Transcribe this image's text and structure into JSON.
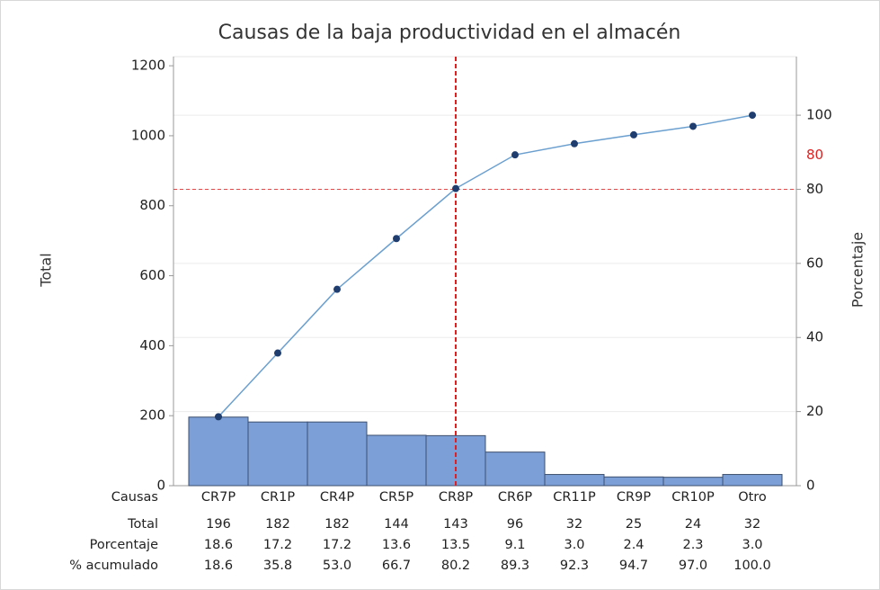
{
  "chart_data": {
    "type": "pareto",
    "title": "Causas de la baja productividad en el almacén",
    "ylabel": "Total",
    "y2label": "Porcentaje",
    "category_label": "Causas",
    "categories": [
      "CR7P",
      "CR1P",
      "CR4P",
      "CR5P",
      "CR8P",
      "CR6P",
      "CR11P",
      "CR9P",
      "CR10P",
      "Otro"
    ],
    "series": [
      {
        "name": "Total",
        "color": "#7b9fd6",
        "values": [
          196,
          182,
          182,
          144,
          143,
          96,
          32,
          25,
          24,
          32
        ]
      },
      {
        "name": "% acumulado",
        "color": "#6a9fcf",
        "axis": "y2",
        "values": [
          18.6,
          35.8,
          53.0,
          66.7,
          80.2,
          89.3,
          92.3,
          94.7,
          97.0,
          100.0
        ],
        "value_labels": [
          "18.6",
          "35.8",
          "53.0",
          "66.7",
          "80.2",
          "89.3",
          "92.3",
          "94.7",
          "97.0",
          "100.0"
        ]
      }
    ],
    "percent": {
      "name": "Porcentaje",
      "values": [
        18.6,
        17.2,
        17.2,
        13.6,
        13.5,
        9.1,
        3.0,
        2.4,
        2.3,
        3.0
      ],
      "value_labels": [
        "18.6",
        "17.2",
        "17.2",
        "13.6",
        "13.5",
        "9.1",
        "3.0",
        "2.4",
        "2.3",
        "3.0"
      ]
    },
    "threshold": 80,
    "threshold_color": "#e02020",
    "ylim": [
      0,
      1226
    ],
    "yticks": [
      0,
      200,
      400,
      600,
      800,
      1000,
      1200
    ],
    "y2lim": [
      0,
      115.8
    ],
    "y2ticks": [
      0,
      20,
      40,
      60,
      80,
      100
    ],
    "grid": "y2"
  }
}
